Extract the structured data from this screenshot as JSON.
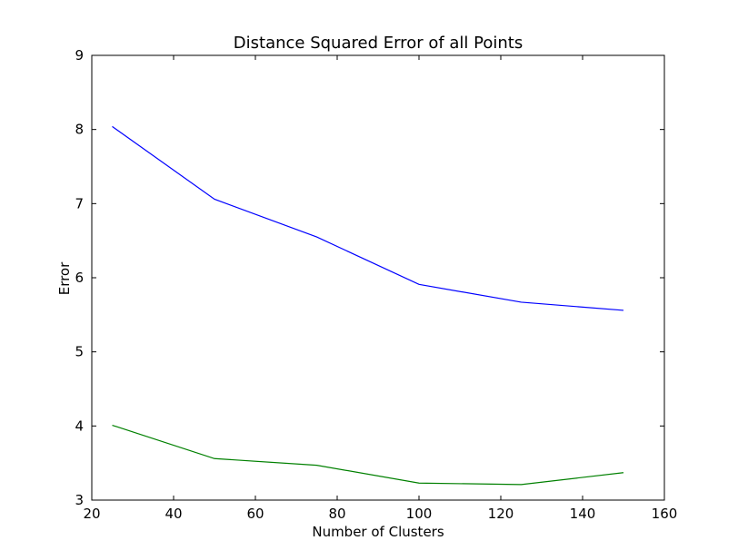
{
  "chart_data": {
    "type": "line",
    "title": "Distance Squared Error of all Points",
    "xlabel": "Number of Clusters",
    "ylabel": "Error",
    "xlim": [
      20,
      160
    ],
    "ylim": [
      3,
      9
    ],
    "xticks": [
      "20",
      "40",
      "60",
      "80",
      "100",
      "120",
      "140",
      "160"
    ],
    "yticks": [
      "3",
      "4",
      "5",
      "6",
      "7",
      "8",
      "9"
    ],
    "x": [
      25,
      50,
      75,
      100,
      125,
      150
    ],
    "series": [
      {
        "color": "#0000ff",
        "values": [
          8.04,
          7.06,
          6.55,
          5.91,
          5.67,
          5.56
        ]
      },
      {
        "color": "#008000",
        "values": [
          4.01,
          3.56,
          3.47,
          3.23,
          3.21,
          3.37
        ]
      }
    ],
    "grid": false
  }
}
